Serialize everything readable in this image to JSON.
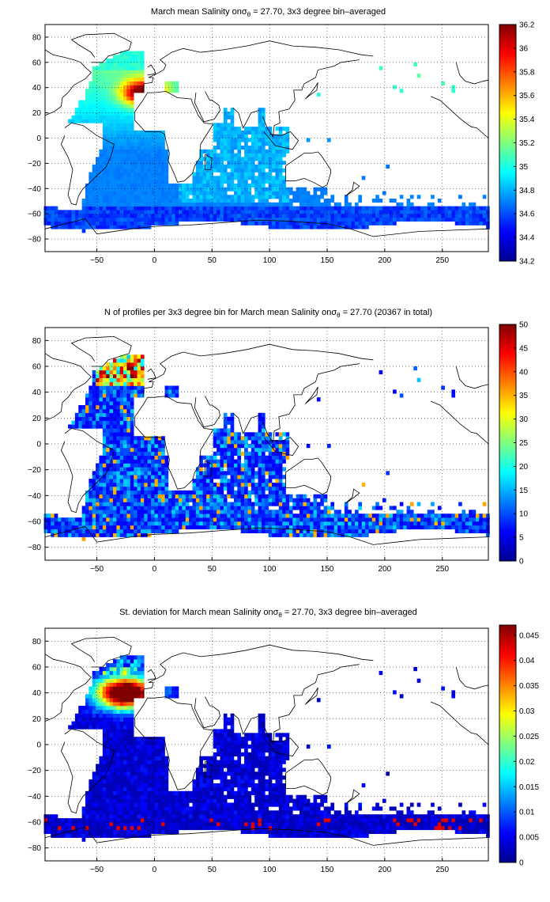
{
  "chart_data": [
    {
      "type": "heatmap",
      "title_prefix": "March mean Salinity on",
      "title_sigma": "σ",
      "title_sub": "θ",
      "title_suffix": " = 27.70, 3x3 degree bin–averaged",
      "xlim": [
        -95,
        290
      ],
      "ylim": [
        -90,
        90
      ],
      "xticks": [
        -50,
        0,
        50,
        100,
        150,
        200,
        250
      ],
      "yticks": [
        80,
        60,
        40,
        20,
        0,
        -20,
        -40,
        -60,
        -80
      ],
      "clim": [
        34.2,
        36.2
      ],
      "cbar_ticks": [
        "36.2",
        "36",
        "35.8",
        "35.6",
        "35.4",
        "35.2",
        "35",
        "34.8",
        "34.6",
        "34.4",
        "34.2"
      ],
      "colormap": "jet",
      "grid": true
    },
    {
      "type": "heatmap",
      "title_prefix": "N of profiles per 3x3 degree bin for March mean Salinity on",
      "title_sigma": "σ",
      "title_sub": "θ",
      "title_suffix": " = 27.70 (20367 in total)",
      "xlim": [
        -95,
        290
      ],
      "ylim": [
        -90,
        90
      ],
      "xticks": [
        -50,
        0,
        50,
        100,
        150,
        200,
        250
      ],
      "yticks": [
        80,
        60,
        40,
        20,
        0,
        -20,
        -40,
        -60,
        -80
      ],
      "clim": [
        0,
        50
      ],
      "cbar_ticks": [
        "50",
        "45",
        "40",
        "35",
        "30",
        "25",
        "20",
        "15",
        "10",
        "5",
        "0"
      ],
      "colormap": "jet",
      "grid": true
    },
    {
      "type": "heatmap",
      "title_prefix": "St. deviation for March mean Salinity on",
      "title_sigma": "σ",
      "title_sub": "θ",
      "title_suffix": " = 27.70, 3x3 degree bin–averaged",
      "xlim": [
        -95,
        290
      ],
      "ylim": [
        -90,
        90
      ],
      "xticks": [
        -50,
        0,
        50,
        100,
        150,
        200,
        250
      ],
      "yticks": [
        80,
        60,
        40,
        20,
        0,
        -20,
        -40,
        -60,
        -80
      ],
      "clim": [
        0,
        0.047
      ],
      "cbar_ticks": [
        "0.045",
        "0.04",
        "0.035",
        "0.03",
        "0.025",
        "0.02",
        "0.015",
        "0.01",
        "0.005",
        "0"
      ],
      "colormap": "jet",
      "grid": true
    }
  ]
}
